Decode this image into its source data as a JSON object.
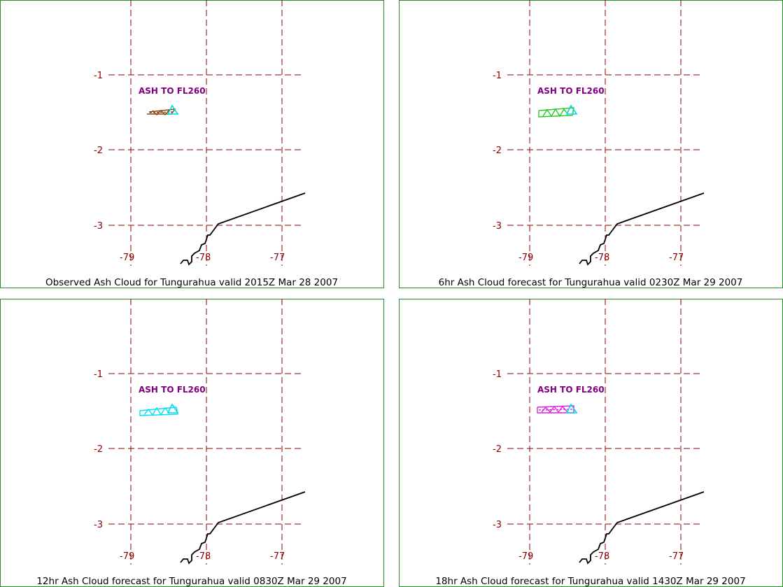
{
  "colors": {
    "frame": "#2e8b2e",
    "grid": "#8b0000",
    "label": "#800080",
    "volcano_marker": "#00d8e8"
  },
  "map": {
    "latitude_labels": [
      "-1",
      "-2",
      "-3"
    ],
    "longitude_labels": [
      "-79",
      "-78",
      "-77"
    ]
  },
  "panels": [
    {
      "caption": "Observed Ash Cloud for Tungurahua valid 2015Z Mar 28 2007",
      "ash_label": "ASH TO FL260",
      "cloud_color": "#8b4513"
    },
    {
      "caption": "6hr Ash Cloud forecast for Tungurahua valid 0230Z Mar 29 2007",
      "ash_label": "ASH TO FL260",
      "cloud_color": "#22cc22"
    },
    {
      "caption": "12hr Ash Cloud forecast for Tungurahua valid 0830Z Mar 29 2007",
      "ash_label": "ASH TO FL260",
      "cloud_color": "#00e0f0"
    },
    {
      "caption": "18hr Ash Cloud forecast for Tungurahua valid 1430Z Mar 29 2007",
      "ash_label": "ASH TO FL260",
      "cloud_color": "#e020e0"
    }
  ]
}
